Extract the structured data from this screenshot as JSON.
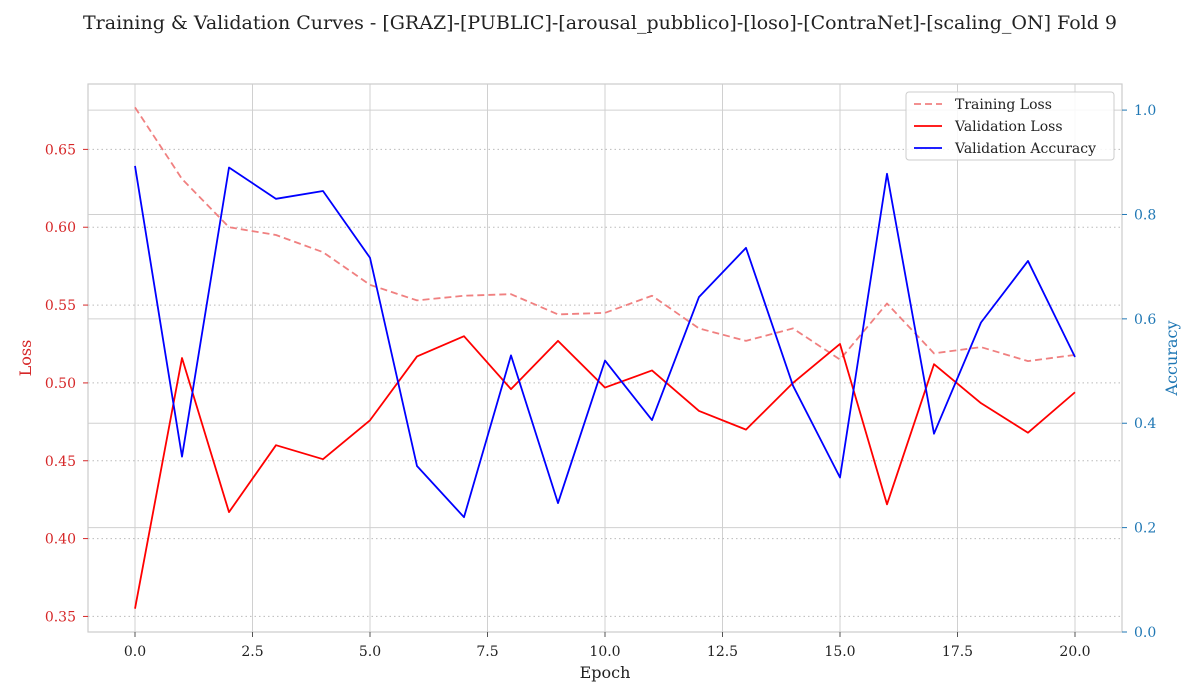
{
  "chart_data": {
    "type": "line",
    "title": "Training & Validation Curves - [GRAZ]-[PUBLIC]-[arousal_pubblico]-[loso]-[ContraNet]-[scaling_ON] Fold 9",
    "xlabel": "Epoch",
    "ylabel_left": "Loss",
    "ylabel_right": "Accuracy",
    "xlim": [
      -1,
      21
    ],
    "ylim_left": [
      0.34,
      0.692
    ],
    "ylim_right": [
      0.0,
      1.05
    ],
    "x_ticks": [
      0,
      2.5,
      5,
      7.5,
      10,
      12.5,
      15,
      17.5,
      20
    ],
    "x_tick_labels": [
      "0.0",
      "2.5",
      "5.0",
      "7.5",
      "10.0",
      "12.5",
      "15.0",
      "17.5",
      "20.0"
    ],
    "y_left_ticks": [
      0.35,
      0.4,
      0.45,
      0.5,
      0.55,
      0.6,
      0.65
    ],
    "y_left_tick_labels": [
      "0.35",
      "0.40",
      "0.45",
      "0.50",
      "0.55",
      "0.60",
      "0.65"
    ],
    "y_right_ticks": [
      0.0,
      0.2,
      0.4,
      0.6,
      0.8,
      1.0
    ],
    "y_right_tick_labels": [
      "0.0",
      "0.2",
      "0.4",
      "0.6",
      "0.8",
      "1.0"
    ],
    "grid": true,
    "legend_position": "top-right",
    "colors": {
      "left_axis": "#d62728",
      "right_axis": "#1f77b4"
    },
    "x": [
      0,
      1,
      2,
      3,
      4,
      5,
      6,
      7,
      8,
      9,
      10,
      11,
      12,
      13,
      14,
      15,
      16,
      17,
      18,
      19,
      20
    ],
    "series": [
      {
        "name": "Training Loss",
        "axis": "left",
        "color": "#f08080",
        "style": "dashed",
        "values": [
          0.677,
          0.631,
          0.6,
          0.595,
          0.584,
          0.563,
          0.553,
          0.556,
          0.557,
          0.544,
          0.545,
          0.556,
          0.535,
          0.527,
          0.535,
          0.515,
          0.551,
          0.519,
          0.523,
          0.514,
          0.518
        ]
      },
      {
        "name": "Validation Loss",
        "axis": "left",
        "color": "#ff0000",
        "style": "solid",
        "values": [
          0.355,
          0.516,
          0.417,
          0.46,
          0.451,
          0.476,
          0.517,
          0.53,
          0.496,
          0.527,
          0.497,
          0.508,
          0.482,
          0.47,
          0.5,
          0.525,
          0.422,
          0.512,
          0.487,
          0.468,
          0.494
        ]
      },
      {
        "name": "Validation Accuracy",
        "axis": "right",
        "color": "#0000ff",
        "style": "solid",
        "values": [
          0.893,
          0.336,
          0.89,
          0.83,
          0.845,
          0.717,
          0.318,
          0.22,
          0.53,
          0.247,
          0.52,
          0.406,
          0.642,
          0.736,
          0.472,
          0.296,
          0.878,
          0.38,
          0.593,
          0.711,
          0.527
        ]
      }
    ]
  }
}
